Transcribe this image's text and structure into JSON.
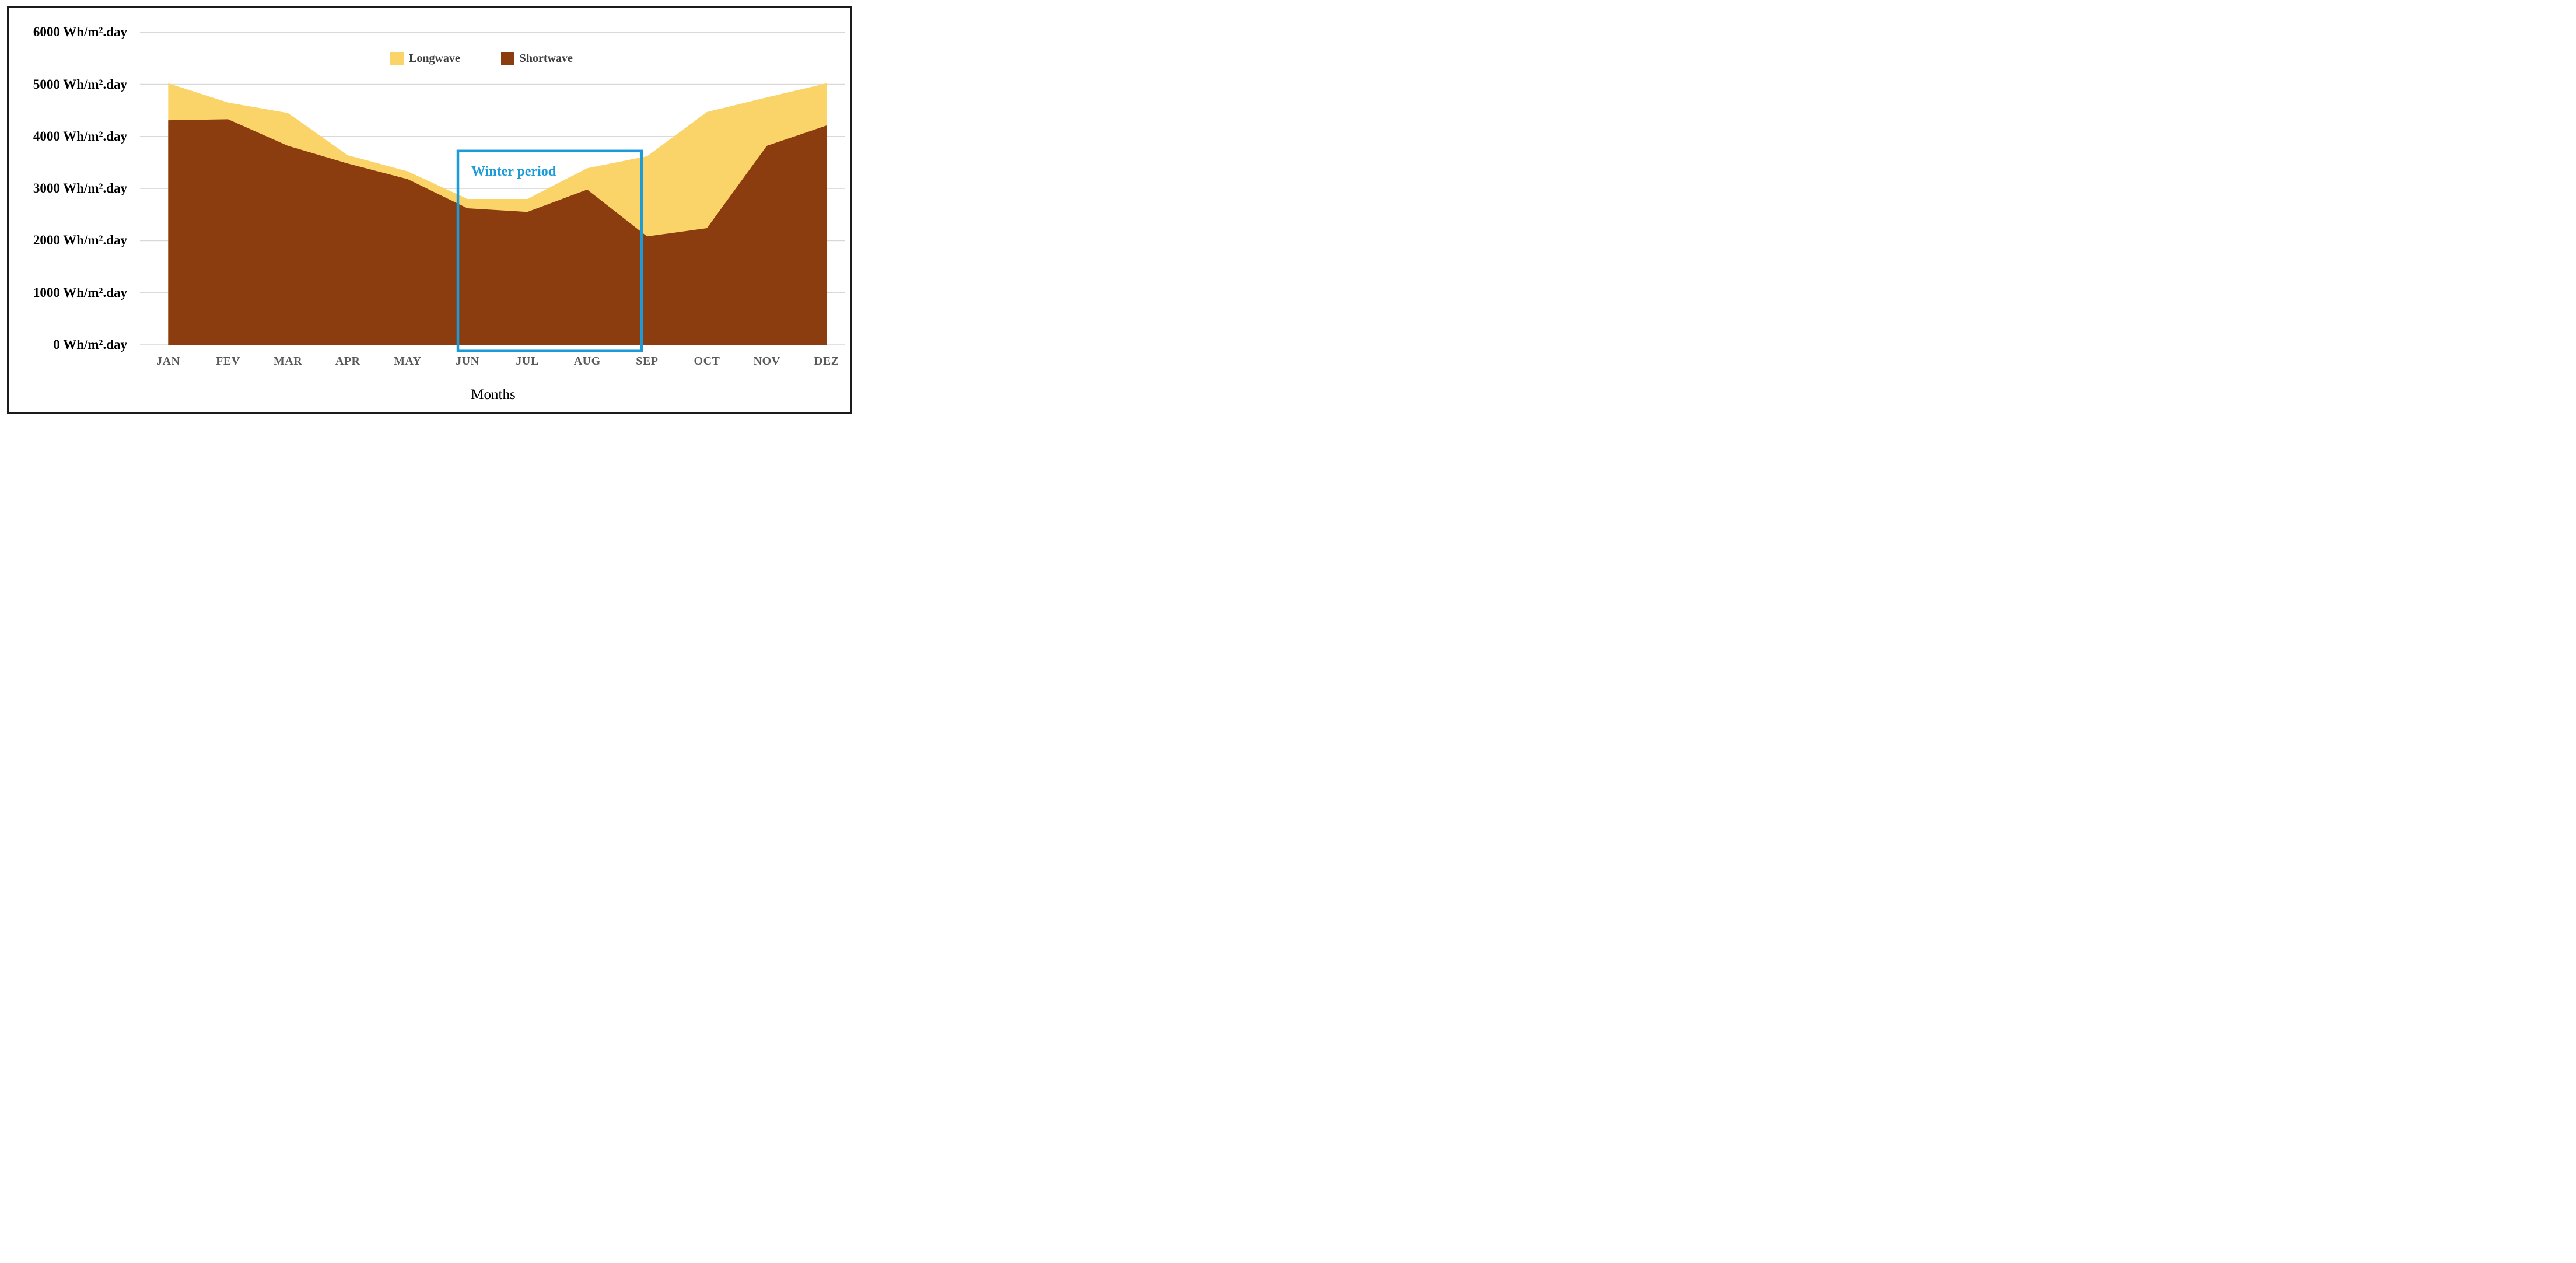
{
  "window": {
    "background": "#ffffff",
    "frame_border_color": "#1b1b1b"
  },
  "chart_data": {
    "type": "area",
    "stacked": true,
    "title": "",
    "categories": [
      "JAN",
      "FEV",
      "MAR",
      "APR",
      "MAY",
      "JUN",
      "JUL",
      "AUG",
      "SEP",
      "OCT",
      "NOV",
      "DEZ"
    ],
    "series": [
      {
        "name": "Shortwave",
        "color": "#8B3D10",
        "values": [
          4310,
          4330,
          3820,
          3480,
          3180,
          2620,
          2550,
          2980,
          2080,
          2240,
          3820,
          4210
        ]
      },
      {
        "name": "Longwave",
        "color": "#FBD469",
        "values": [
          710,
          320,
          630,
          160,
          150,
          180,
          250,
          410,
          1540,
          2230,
          930,
          810
        ]
      }
    ],
    "stacked_totals": [
      5020,
      4650,
      4450,
      3640,
      3330,
      2800,
      2800,
      3390,
      3620,
      4470,
      4750,
      5020
    ],
    "xlabel": "Months",
    "ylabel": "",
    "y_unit": "Wh/m².day",
    "ylim": [
      0,
      6000
    ],
    "grid": "horizontal",
    "gridline_color": "#D9D9D9",
    "y_ticks": [
      {
        "value": 0,
        "label": "0 Wh/m².day"
      },
      {
        "value": 1000,
        "label": "1000 Wh/m².day"
      },
      {
        "value": 2000,
        "label": "2000 Wh/m².day"
      },
      {
        "value": 3000,
        "label": "3000 Wh/m².day"
      },
      {
        "value": 4000,
        "label": "4000 Wh/m².day"
      },
      {
        "value": 5000,
        "label": "5000 Wh/m².day"
      },
      {
        "value": 6000,
        "label": "6000 Wh/m².day"
      }
    ],
    "legend_position": "top-center",
    "axis_month_label_color": "#595959",
    "axis_value_label_color": "#000000",
    "annotation": {
      "label": "Winter period",
      "color": "#1B9CD9",
      "from_month_index": 4.84,
      "to_month_index": 7.91,
      "top_value": 3720,
      "bottom_value": -120,
      "covers_months": "JUN-SEP"
    }
  },
  "legend": {
    "items": [
      {
        "label": "Longwave",
        "color": "#FBD469"
      },
      {
        "label": "Shortwave",
        "color": "#8B3D10"
      }
    ]
  }
}
